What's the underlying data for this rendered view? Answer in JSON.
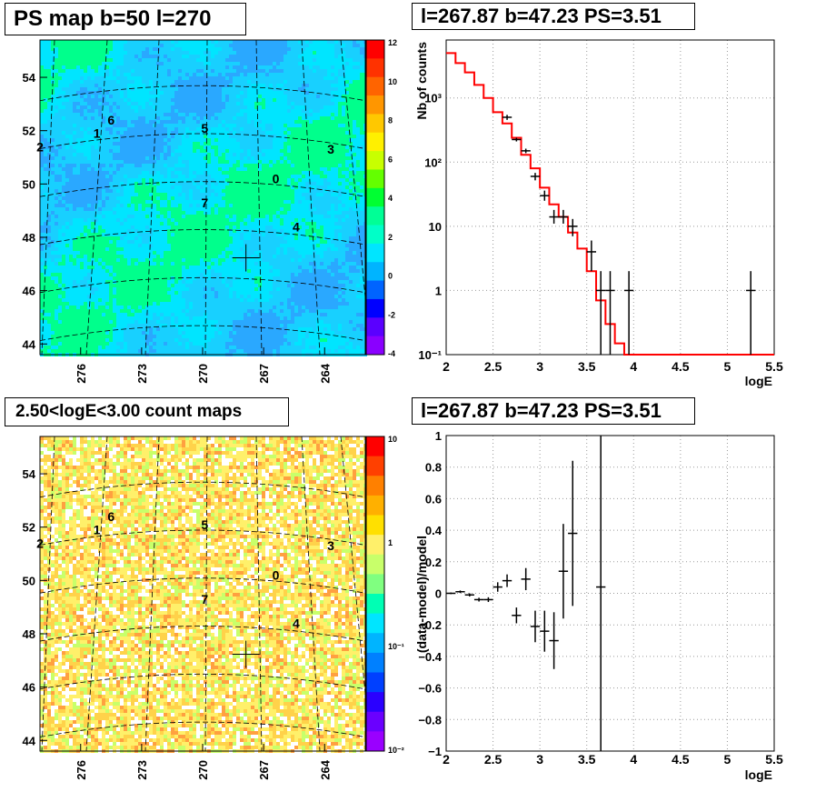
{
  "colors": {
    "frame": "#000000",
    "model": "#ff0000",
    "grid": "#9a9a9a",
    "ps_background": "#00e5ff",
    "count_background": "#fff06a"
  },
  "panels": {
    "ps_map": {
      "title": "PS map b=50 l=270",
      "y_ticks": [
        "54",
        "52",
        "50",
        "48",
        "46",
        "44"
      ],
      "x_ticks": [
        "276",
        "273",
        "270",
        "267",
        "264"
      ],
      "palette_ticks": [
        "12",
        "10",
        "8",
        "6",
        "4",
        "2",
        "0",
        "-2",
        "-4"
      ],
      "sources": [
        "0",
        "1",
        "2",
        "3",
        "4",
        "5",
        "6",
        "7"
      ]
    },
    "count_map": {
      "title": "2.50<logE<3.00 count maps",
      "y_ticks": [
        "54",
        "52",
        "50",
        "48",
        "46",
        "44"
      ],
      "x_ticks": [
        "276",
        "273",
        "270",
        "267",
        "264"
      ],
      "palette_ticks": [
        "10",
        "1",
        "10⁻¹",
        "10⁻²"
      ],
      "sources": [
        "0",
        "1",
        "2",
        "3",
        "4",
        "5",
        "6",
        "7"
      ]
    },
    "spectrum": {
      "title": "l=267.87 b=47.23 PS=3.51"
    },
    "residual": {
      "title": "l=267.87 b=47.23 PS=3.51"
    }
  },
  "chart_data": [
    {
      "type": "heatmap",
      "title": "PS map b=50 l=270",
      "axes": {
        "x_range": [
          278,
          262
        ],
        "y_range": [
          43.6,
          55.4
        ]
      },
      "z_range": [
        -5,
        12
      ],
      "grid": true,
      "sources": [
        {
          "label": "0",
          "l": 266.4,
          "b": 50.2
        },
        {
          "label": "1",
          "l": 275.2,
          "b": 51.9
        },
        {
          "label": "2",
          "l": 278.0,
          "b": 51.4
        },
        {
          "label": "3",
          "l": 263.7,
          "b": 51.3
        },
        {
          "label": "4",
          "l": 265.4,
          "b": 48.4
        },
        {
          "label": "5",
          "l": 269.9,
          "b": 52.1
        },
        {
          "label": "6",
          "l": 274.5,
          "b": 52.4
        },
        {
          "label": "7",
          "l": 269.9,
          "b": 49.3
        }
      ],
      "marker": {
        "l": 267.87,
        "b": 47.23
      }
    },
    {
      "type": "line",
      "title": "l=267.87 b=47.23 PS=3.51",
      "xlabel": "logE",
      "ylabel": "Nb of counts",
      "xlim": [
        2,
        5.5
      ],
      "ylim": [
        0.1,
        8000
      ],
      "y_scale": "log",
      "grid": true,
      "x_ticks": [
        "2",
        "2.5",
        "3",
        "3.5",
        "4",
        "4.5",
        "5",
        "5.5"
      ],
      "y_ticks": [
        "10⁻¹",
        "1",
        "10",
        "10²",
        "10³"
      ],
      "series": [
        {
          "label": "model",
          "type": "step",
          "x_edges": [
            2,
            2.1,
            2.2,
            2.3,
            2.4,
            2.5,
            2.6,
            2.7,
            2.8,
            2.9,
            3.0,
            3.1,
            3.2,
            3.3,
            3.4,
            3.5,
            3.6,
            3.7,
            3.8,
            3.9,
            4.0,
            5.5
          ],
          "values": [
            5000,
            3500,
            2500,
            1600,
            1000,
            600,
            400,
            240,
            130,
            80,
            40,
            22,
            14,
            8,
            4.5,
            2,
            0.7,
            0.3,
            0.15,
            0.1,
            0.1
          ]
        },
        {
          "label": "data",
          "type": "errorbar",
          "points": [
            {
              "x": 2.65,
              "y": 500,
              "xerr": 0.05,
              "lo": 455,
              "hi": 545
            },
            {
              "x": 2.75,
              "y": 225,
              "xerr": 0.05,
              "lo": 210,
              "hi": 240
            },
            {
              "x": 2.85,
              "y": 150,
              "xerr": 0.05,
              "lo": 138,
              "hi": 162
            },
            {
              "x": 2.95,
              "y": 60,
              "xerr": 0.05,
              "lo": 52,
              "hi": 68
            },
            {
              "x": 3.05,
              "y": 30,
              "xerr": 0.05,
              "lo": 25,
              "hi": 36
            },
            {
              "x": 3.15,
              "y": 14,
              "xerr": 0.05,
              "lo": 11,
              "hi": 18
            },
            {
              "x": 3.25,
              "y": 14,
              "xerr": 0.05,
              "lo": 11,
              "hi": 18
            },
            {
              "x": 3.35,
              "y": 10,
              "xerr": 0.05,
              "lo": 7,
              "hi": 13
            },
            {
              "x": 3.55,
              "y": 4,
              "xerr": 0.05,
              "lo": 2,
              "hi": 6
            },
            {
              "x": 3.65,
              "y": 1,
              "xerr": 0.05,
              "lo": 0.1,
              "hi": 2
            },
            {
              "x": 3.75,
              "y": 1,
              "xerr": 0.05,
              "lo": 0.1,
              "hi": 2
            },
            {
              "x": 3.95,
              "y": 1,
              "xerr": 0.05,
              "lo": 0.1,
              "hi": 2
            },
            {
              "x": 5.25,
              "y": 1,
              "xerr": 0.05,
              "lo": 0.1,
              "hi": 2
            }
          ]
        }
      ]
    },
    {
      "type": "heatmap",
      "title": "2.50<logE<3.00 count maps",
      "axes": {
        "x_range": [
          278,
          262
        ],
        "y_range": [
          43.6,
          55.4
        ]
      },
      "z_range": [
        0.01,
        10
      ],
      "z_scale": "log",
      "grid": true,
      "sources": [
        {
          "label": "0",
          "l": 266.4,
          "b": 50.2
        },
        {
          "label": "1",
          "l": 275.2,
          "b": 51.9
        },
        {
          "label": "2",
          "l": 278.0,
          "b": 51.4
        },
        {
          "label": "3",
          "l": 263.7,
          "b": 51.3
        },
        {
          "label": "4",
          "l": 265.4,
          "b": 48.4
        },
        {
          "label": "5",
          "l": 269.9,
          "b": 52.1
        },
        {
          "label": "6",
          "l": 274.5,
          "b": 52.4
        },
        {
          "label": "7",
          "l": 269.9,
          "b": 49.3
        }
      ],
      "marker": {
        "l": 267.87,
        "b": 47.23
      }
    },
    {
      "type": "scatter",
      "title": "l=267.87 b=47.23 PS=3.51",
      "xlabel": "logE",
      "ylabel": "(data-model)/model",
      "xlim": [
        2,
        5.5
      ],
      "ylim": [
        -1,
        1
      ],
      "grid": true,
      "x_ticks": [
        "2",
        "2.5",
        "3",
        "3.5",
        "4",
        "4.5",
        "5",
        "5.5"
      ],
      "y_ticks": [
        "1",
        "0.8",
        "0.6",
        "0.4",
        "0.2",
        "0",
        "−0.2",
        "−0.4",
        "−0.6",
        "−0.8",
        "−1"
      ],
      "points": [
        {
          "x": 2.05,
          "y": 0.0,
          "xerr": 0.05,
          "yerr": 0.005
        },
        {
          "x": 2.15,
          "y": 0.01,
          "xerr": 0.05,
          "yerr": 0.008
        },
        {
          "x": 2.25,
          "y": -0.01,
          "xerr": 0.05,
          "yerr": 0.01
        },
        {
          "x": 2.35,
          "y": -0.04,
          "xerr": 0.05,
          "yerr": 0.012
        },
        {
          "x": 2.45,
          "y": -0.04,
          "xerr": 0.05,
          "yerr": 0.015
        },
        {
          "x": 2.55,
          "y": 0.04,
          "xerr": 0.05,
          "yerr": 0.03
        },
        {
          "x": 2.65,
          "y": 0.08,
          "xerr": 0.05,
          "yerr": 0.04
        },
        {
          "x": 2.75,
          "y": -0.14,
          "xerr": 0.05,
          "yerr": 0.05
        },
        {
          "x": 2.85,
          "y": 0.09,
          "xerr": 0.05,
          "yerr": 0.07
        },
        {
          "x": 2.95,
          "y": -0.21,
          "xerr": 0.05,
          "yerr": 0.1
        },
        {
          "x": 3.05,
          "y": -0.24,
          "xerr": 0.05,
          "yerr": 0.13
        },
        {
          "x": 3.15,
          "y": -0.3,
          "xerr": 0.05,
          "yerr": 0.18
        },
        {
          "x": 3.25,
          "y": 0.14,
          "xerr": 0.05,
          "yerr": 0.3
        },
        {
          "x": 3.35,
          "y": 0.38,
          "xerr": 0.05,
          "yerr": 0.46
        },
        {
          "x": 3.65,
          "y": 0.04,
          "xerr": 0.05,
          "yerr": 1.2
        }
      ]
    }
  ]
}
